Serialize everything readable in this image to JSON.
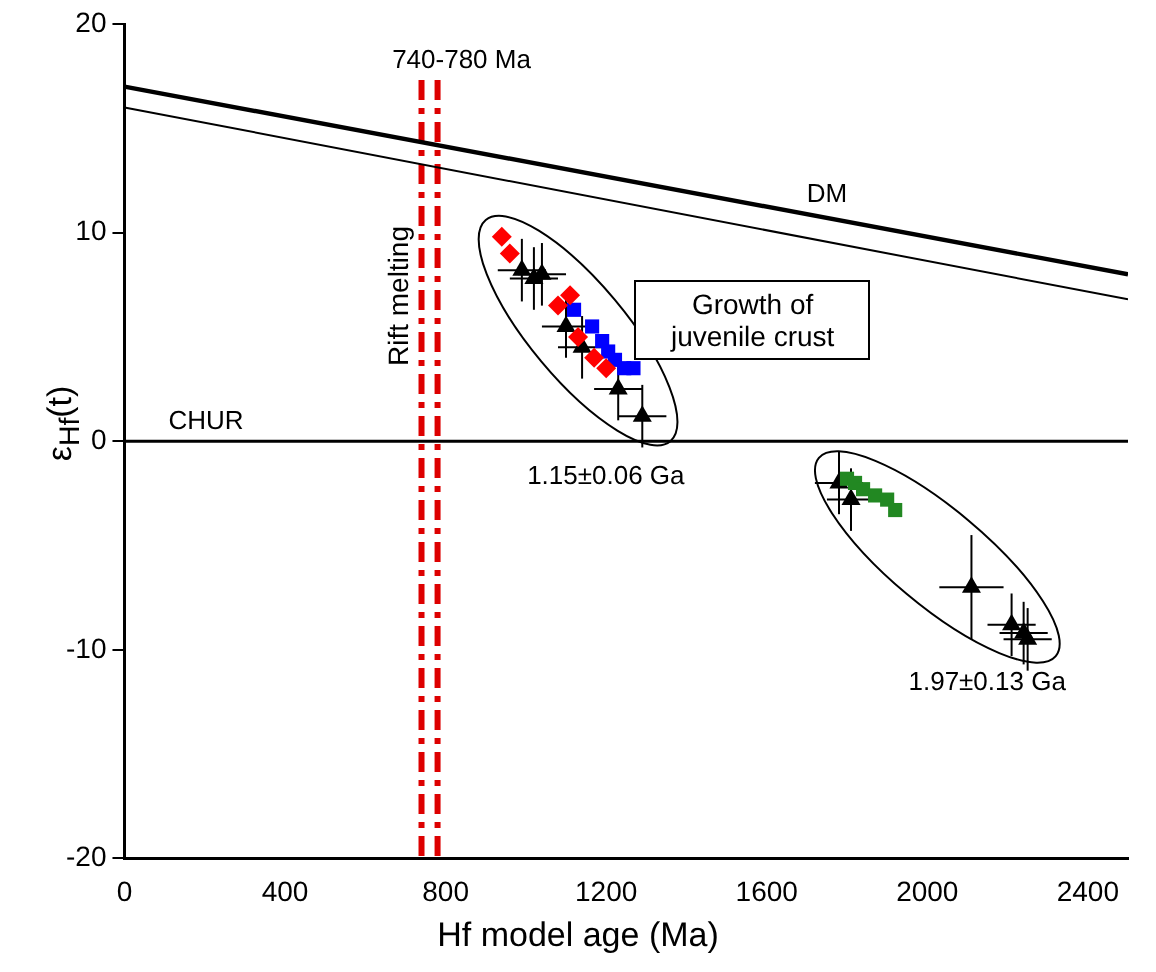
{
  "chart_data": {
    "type": "scatter",
    "xlabel": "Hf model age (Ma)",
    "ylabel": "ε$_{Hf}$(t)",
    "xlim": [
      0,
      2500
    ],
    "xticks": [
      0,
      400,
      800,
      1200,
      1600,
      2000,
      2400
    ],
    "ylim": [
      -20,
      20
    ],
    "yticks": [
      -20,
      -10,
      0,
      10,
      20
    ],
    "grid": false,
    "legend": false,
    "series": [
      {
        "name": "DM",
        "type": "line",
        "color": "#000000",
        "x": [
          0,
          2500
        ],
        "values": [
          17,
          8
        ],
        "marker": "none"
      },
      {
        "type": "line",
        "color": "#000000",
        "x": [
          0,
          2500
        ],
        "values": [
          16,
          6.8
        ],
        "marker": "none"
      },
      {
        "color": "#ff0000",
        "marker": "diamond",
        "x": [
          940,
          960,
          1080,
          1110,
          1130,
          1170,
          1200
        ],
        "values": [
          9.8,
          9,
          6.5,
          7,
          5,
          4,
          3.5
        ]
      },
      {
        "color": "#0000ff",
        "marker": "square",
        "x": [
          1120,
          1165,
          1190,
          1205,
          1222,
          1245,
          1268
        ],
        "values": [
          6.3,
          5.5,
          4.8,
          4.3,
          3.9,
          3.5,
          3.5
        ]
      },
      {
        "color": "#000000",
        "marker": "triangle",
        "x": [
          990,
          1020,
          1040,
          1100,
          1140,
          1230,
          1290
        ],
        "values": [
          8.2,
          7.8,
          8,
          5.5,
          4.5,
          2.5,
          1.2
        ],
        "errors": [
          1.5,
          1.5,
          1.5,
          1.5,
          1.5,
          1.5,
          1.5
        ],
        "xerrors": [
          60,
          60,
          60,
          60,
          60,
          60,
          60
        ]
      },
      {
        "color": "#228822",
        "marker": "square",
        "x": [
          1800,
          1820,
          1840,
          1870,
          1900,
          1920
        ],
        "values": [
          -1.8,
          -2,
          -2.3,
          -2.6,
          -2.8,
          -3.3
        ]
      },
      {
        "color": "#000000",
        "marker": "triangle",
        "x": [
          1780,
          1810,
          2110,
          2210,
          2240,
          2250
        ],
        "values": [
          -2,
          -2.8,
          -7,
          -8.8,
          -9.2,
          -9.5
        ],
        "errors": [
          1.5,
          1.5,
          2.5,
          1.5,
          1.5,
          1.5
        ],
        "xerrors": [
          60,
          60,
          80,
          60,
          60,
          60
        ]
      }
    ],
    "ref_lines": [
      {
        "axis": "y",
        "value": 0,
        "label": "CHUR",
        "color": "#000000",
        "line_style": "solid"
      },
      {
        "axis": "x",
        "value": 740,
        "label": "740-780 Ma",
        "color": "#dd0000",
        "line_style": "dashed"
      },
      {
        "axis": "x",
        "value": 780,
        "label": null,
        "color": "#dd0000",
        "line_style": "dashed"
      }
    ],
    "annotations": [
      "Rift melting",
      "Growth of juvenile crust",
      "1.15±0.06 Ga",
      "1.97±0.13 Ga"
    ]
  }
}
